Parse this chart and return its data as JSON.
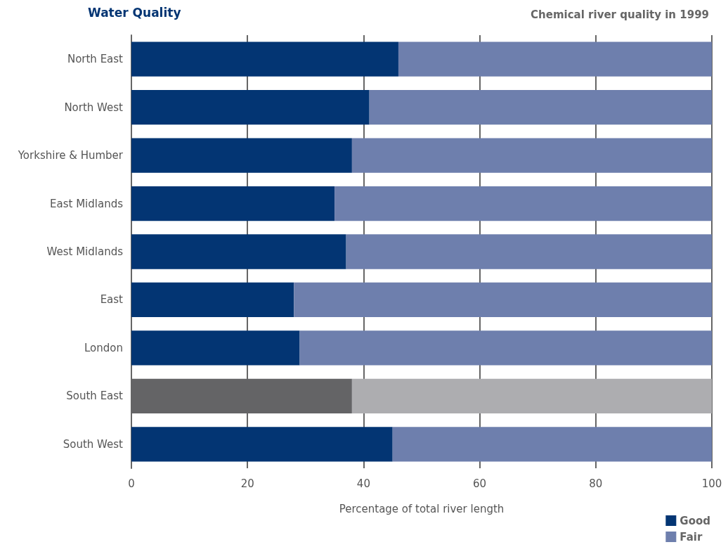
{
  "chart_data": {
    "type": "bar",
    "title": "Water Quality",
    "subtitle": "Chemical river quality in 1999",
    "xlabel": "Percentage of total river length",
    "orientation": "horizontal",
    "stacked": true,
    "categories": [
      "North East",
      "North West",
      "Yorkshire & Humber",
      "East Midlands",
      "West Midlands",
      "East",
      "London",
      "South East",
      "South West"
    ],
    "series": [
      {
        "name": "Good",
        "color": "#033573",
        "values": [
          46,
          41,
          38,
          35,
          37,
          28,
          29,
          38,
          45
        ],
        "colors": [
          "#033573",
          "#033573",
          "#033573",
          "#033573",
          "#033573",
          "#033573",
          "#033573",
          "#646466",
          "#033573"
        ]
      },
      {
        "name": "Fair",
        "color": "#6e7fad",
        "values": [
          54,
          59,
          62,
          65,
          63,
          72,
          71,
          62,
          55
        ],
        "colors": [
          "#6e7fad",
          "#6e7fad",
          "#6e7fad",
          "#6e7fad",
          "#6e7fad",
          "#6e7fad",
          "#6e7fad",
          "#adadb0",
          "#6e7fad"
        ]
      }
    ],
    "xlim": [
      0,
      100
    ],
    "xticks": [
      0,
      20,
      40,
      60,
      80,
      100
    ],
    "grid": "x",
    "legend": "bottom right"
  }
}
